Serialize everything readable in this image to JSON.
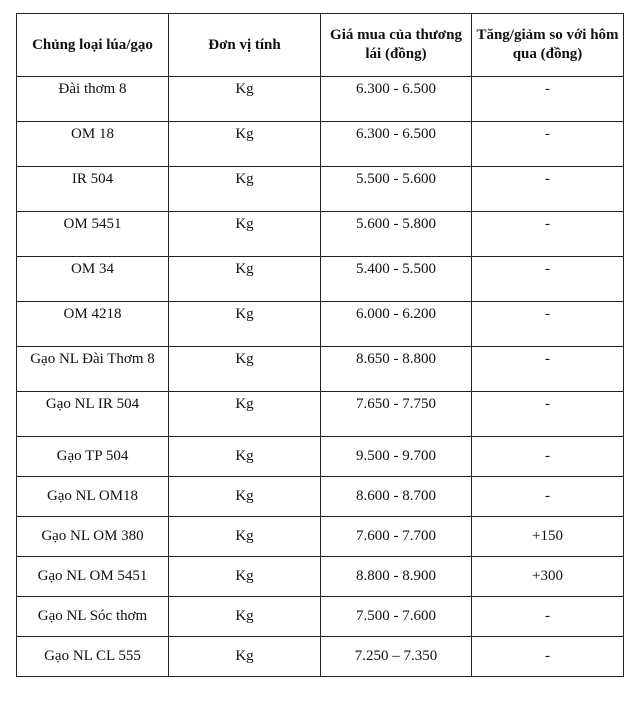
{
  "headers": [
    "Chủng loại lúa/gạo",
    "Đơn vị tính",
    "Giá mua của thương lái (đồng)",
    "Tăng/giảm so với hôm qua (đồng)"
  ],
  "rows": [
    [
      "Đài thơm 8",
      "Kg",
      "6.300 - 6.500",
      "-"
    ],
    [
      "OM 18",
      "Kg",
      "6.300 - 6.500",
      "-"
    ],
    [
      "IR 504",
      "Kg",
      "5.500 - 5.600",
      "-"
    ],
    [
      "OM 5451",
      "Kg",
      "5.600 - 5.800",
      "-"
    ],
    [
      "OM 34",
      "Kg",
      "5.400 - 5.500",
      "-"
    ],
    [
      "OM 4218",
      "Kg",
      "6.000 - 6.200",
      "-"
    ],
    [
      "Gạo NL Đài Thơm 8",
      "Kg",
      "8.650 - 8.800",
      "-"
    ],
    [
      "Gạo NL IR 504",
      "Kg",
      "7.650 - 7.750",
      "-"
    ],
    [
      "Gạo TP 504",
      "Kg",
      "9.500 - 9.700",
      "-"
    ],
    [
      "Gạo NL OM18",
      "Kg",
      "8.600 - 8.700",
      "-"
    ],
    [
      "Gạo NL OM 380",
      "Kg",
      "7.600 - 7.700",
      "+150"
    ],
    [
      "Gạo NL OM 5451",
      "Kg",
      "8.800 - 8.900",
      "+300"
    ],
    [
      "Gạo NL Sóc thơm",
      "Kg",
      "7.500 - 7.600",
      "-"
    ],
    [
      "Gạo NL CL 555",
      "Kg",
      "7.250 – 7.350",
      "-"
    ]
  ]
}
